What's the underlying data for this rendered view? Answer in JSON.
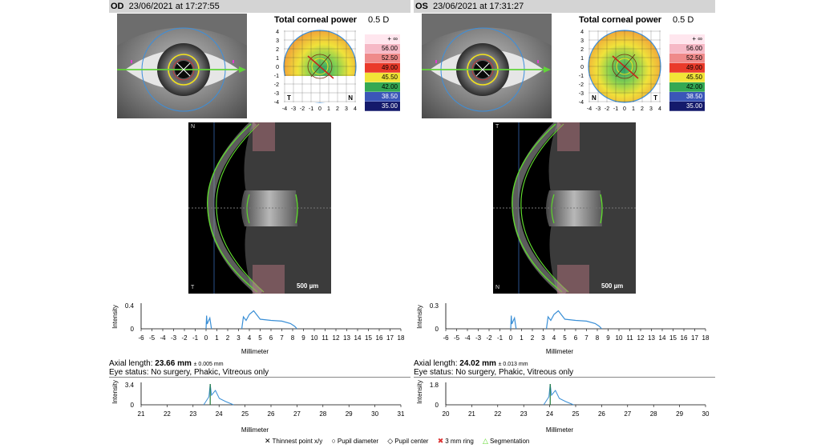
{
  "panels": [
    {
      "side": "OD",
      "datetime": "23/06/2021 at 17:27:55",
      "topo": {
        "title": "Total corneal power",
        "step": "0.5 D",
        "left_letter": "T",
        "right_letter": "N",
        "axis_ticks": [
          "-4",
          "-3",
          "-2",
          "-1",
          "0",
          "1",
          "2",
          "3",
          "4"
        ],
        "y_ticks": [
          "4",
          "3",
          "2",
          "1",
          "0",
          "-1",
          "-2",
          "-3",
          "-4"
        ],
        "scale": [
          "+ ∞",
          "56.00",
          "52.50",
          "49.00",
          "45.50",
          "42.00",
          "38.50",
          "35.00"
        ]
      },
      "oct": {
        "top_label": "N",
        "bottom_label": "T",
        "scale_label": "500 µm"
      },
      "intensity": {
        "ylabel": "Intensity",
        "ymax": 0.4,
        "ytick_top": "0.4",
        "ytick_bottom": "0",
        "xlabel": "Millimeter",
        "xticks": [
          -6,
          -5,
          -4,
          -3,
          -2,
          -1,
          0,
          1,
          2,
          3,
          4,
          5,
          6,
          7,
          8,
          9,
          10,
          11,
          12,
          13,
          14,
          15,
          16,
          17,
          18
        ]
      },
      "axial_prefix": "Axial length:",
      "axial_value": "23.66 mm",
      "axial_tol": "± 0.005 mm",
      "eye_status": "Eye status: No surgery, Phakic, Vitreous only",
      "axial_plot": {
        "ylabel": "Intensity",
        "ytick_top": "3.4",
        "ytick_bottom": "0",
        "xlabel": "Millimeter",
        "xticks": [
          21,
          22,
          23,
          24,
          25,
          26,
          27,
          28,
          29,
          30,
          31
        ],
        "peak_mm": 23.66,
        "peak_value": 3.4
      }
    },
    {
      "side": "OS",
      "datetime": "23/06/2021 at 17:31:27",
      "topo": {
        "title": "Total corneal power",
        "step": "0.5 D",
        "left_letter": "N",
        "right_letter": "T",
        "axis_ticks": [
          "-4",
          "-3",
          "-2",
          "-1",
          "0",
          "1",
          "2",
          "3",
          "4"
        ],
        "y_ticks": [
          "4",
          "3",
          "2",
          "1",
          "0",
          "-1",
          "-2",
          "-3",
          "-4"
        ],
        "scale": [
          "+ ∞",
          "56.00",
          "52.50",
          "49.00",
          "45.50",
          "42.00",
          "38.50",
          "35.00"
        ]
      },
      "oct": {
        "top_label": "T",
        "bottom_label": "N",
        "scale_label": "500 µm"
      },
      "intensity": {
        "ylabel": "Intensity",
        "ymax": 0.3,
        "ytick_top": "0.3",
        "ytick_bottom": "0",
        "xlabel": "Millimeter",
        "xticks": [
          -6,
          -5,
          -4,
          -3,
          -2,
          -1,
          0,
          1,
          2,
          3,
          4,
          5,
          6,
          7,
          8,
          9,
          10,
          11,
          12,
          13,
          14,
          15,
          16,
          17,
          18
        ]
      },
      "axial_prefix": "Axial length:",
      "axial_value": "24.02 mm",
      "axial_tol": "± 0.013 mm",
      "eye_status": "Eye status: No surgery, Phakic, Vitreous only",
      "axial_plot": {
        "ylabel": "Intensity",
        "ytick_top": "1.8",
        "ytick_bottom": "0",
        "xlabel": "Millimeter",
        "xticks": [
          20,
          21,
          22,
          23,
          24,
          25,
          26,
          27,
          28,
          29,
          30
        ],
        "peak_mm": 24.02,
        "peak_value": 1.8
      }
    }
  ],
  "legend": [
    {
      "symbol": "✕",
      "text": "Thinnest point x/y"
    },
    {
      "symbol": "○",
      "text": "Pupil diameter"
    },
    {
      "symbol": "◇",
      "text": "Pupil center"
    },
    {
      "symbol": "✖",
      "text": "3 mm ring"
    },
    {
      "symbol": "△",
      "text": "Segmentation"
    }
  ],
  "colors": {
    "scale": [
      "#ffe6ee",
      "#f6b9c6",
      "#ef8a8a",
      "#ea3a2a",
      "#f1e437",
      "#34a853",
      "#3b56b8",
      "#141a6b"
    ],
    "signal": "#3a8fd6",
    "segmentation": "#5fd92e",
    "axis_arrow": "#62d33a",
    "ring": "#3c8fdc"
  }
}
